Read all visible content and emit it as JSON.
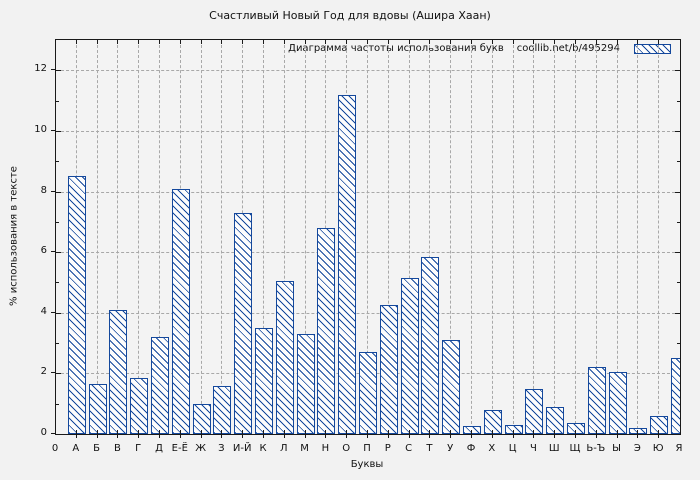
{
  "title": "Счастливый Новый Год для вдовы (Ашира Хаан)",
  "legend": {
    "label": "Диаграмма частоты использования букв",
    "source": "coollib.net/b/495294"
  },
  "axes": {
    "x_label": "Буквы",
    "y_label": "% использования в тексте",
    "origin_label": "0",
    "y_ticks": [
      0,
      2,
      4,
      6,
      8,
      10,
      12
    ],
    "y_max": 13
  },
  "colors": {
    "background": "#f2f2f2",
    "plot_background": "#f3f3f3",
    "bar": "#14489c",
    "bar_fill": "#fdfdfd",
    "grid": "#a8a8a8",
    "frame": "#1a1a1a"
  },
  "chart_data": {
    "type": "bar",
    "title": "Диаграмма частоты использования букв coollib.net/b/495294",
    "categories": [
      "А",
      "Б",
      "В",
      "Г",
      "Д",
      "Е-Ё",
      "Ж",
      "З",
      "И-Й",
      "К",
      "Л",
      "М",
      "Н",
      "О",
      "П",
      "Р",
      "С",
      "Т",
      "У",
      "Ф",
      "Х",
      "Ц",
      "Ч",
      "Ш",
      "Щ",
      "Ь-Ъ",
      "Ы",
      "Э",
      "Ю",
      "Я"
    ],
    "values": [
      8.5,
      1.65,
      4.1,
      1.85,
      3.2,
      8.1,
      1.0,
      1.6,
      7.3,
      3.5,
      5.05,
      3.3,
      6.8,
      11.2,
      2.7,
      4.25,
      5.15,
      5.85,
      3.1,
      0.25,
      0.8,
      0.3,
      1.5,
      0.9,
      0.35,
      2.2,
      2.05,
      0.2,
      0.6,
      2.5
    ],
    "xlabel": "Буквы",
    "ylabel": "% использования в тексте",
    "ylim": [
      0,
      13
    ],
    "grid": true,
    "legend_position": "top-right-inside",
    "bar_style": "diagonal-hatch"
  }
}
